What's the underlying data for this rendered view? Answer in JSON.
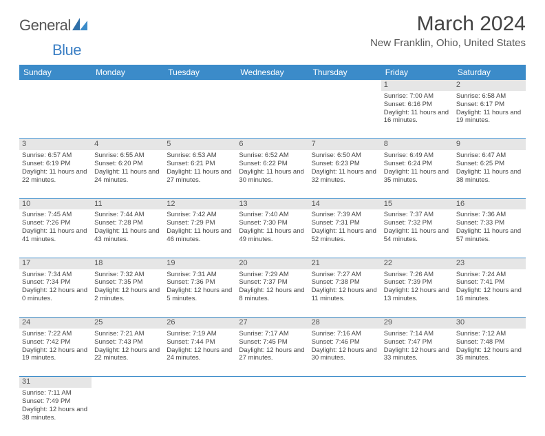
{
  "logo": {
    "part1": "General",
    "part2": "Blue"
  },
  "title": "March 2024",
  "location": "New Franklin, Ohio, United States",
  "colors": {
    "header_bg": "#3b8bc9",
    "header_text": "#ffffff",
    "daynum_bg": "#e6e6e6",
    "border": "#3b8bc9",
    "logo_blue": "#3b7fc4",
    "text": "#444444"
  },
  "weekdays": [
    "Sunday",
    "Monday",
    "Tuesday",
    "Wednesday",
    "Thursday",
    "Friday",
    "Saturday"
  ],
  "weeks": [
    [
      null,
      null,
      null,
      null,
      null,
      {
        "n": "1",
        "sr": "7:00 AM",
        "ss": "6:16 PM",
        "dl": "11 hours and 16 minutes."
      },
      {
        "n": "2",
        "sr": "6:58 AM",
        "ss": "6:17 PM",
        "dl": "11 hours and 19 minutes."
      }
    ],
    [
      {
        "n": "3",
        "sr": "6:57 AM",
        "ss": "6:19 PM",
        "dl": "11 hours and 22 minutes."
      },
      {
        "n": "4",
        "sr": "6:55 AM",
        "ss": "6:20 PM",
        "dl": "11 hours and 24 minutes."
      },
      {
        "n": "5",
        "sr": "6:53 AM",
        "ss": "6:21 PM",
        "dl": "11 hours and 27 minutes."
      },
      {
        "n": "6",
        "sr": "6:52 AM",
        "ss": "6:22 PM",
        "dl": "11 hours and 30 minutes."
      },
      {
        "n": "7",
        "sr": "6:50 AM",
        "ss": "6:23 PM",
        "dl": "11 hours and 32 minutes."
      },
      {
        "n": "8",
        "sr": "6:49 AM",
        "ss": "6:24 PM",
        "dl": "11 hours and 35 minutes."
      },
      {
        "n": "9",
        "sr": "6:47 AM",
        "ss": "6:25 PM",
        "dl": "11 hours and 38 minutes."
      }
    ],
    [
      {
        "n": "10",
        "sr": "7:45 AM",
        "ss": "7:26 PM",
        "dl": "11 hours and 41 minutes."
      },
      {
        "n": "11",
        "sr": "7:44 AM",
        "ss": "7:28 PM",
        "dl": "11 hours and 43 minutes."
      },
      {
        "n": "12",
        "sr": "7:42 AM",
        "ss": "7:29 PM",
        "dl": "11 hours and 46 minutes."
      },
      {
        "n": "13",
        "sr": "7:40 AM",
        "ss": "7:30 PM",
        "dl": "11 hours and 49 minutes."
      },
      {
        "n": "14",
        "sr": "7:39 AM",
        "ss": "7:31 PM",
        "dl": "11 hours and 52 minutes."
      },
      {
        "n": "15",
        "sr": "7:37 AM",
        "ss": "7:32 PM",
        "dl": "11 hours and 54 minutes."
      },
      {
        "n": "16",
        "sr": "7:36 AM",
        "ss": "7:33 PM",
        "dl": "11 hours and 57 minutes."
      }
    ],
    [
      {
        "n": "17",
        "sr": "7:34 AM",
        "ss": "7:34 PM",
        "dl": "12 hours and 0 minutes."
      },
      {
        "n": "18",
        "sr": "7:32 AM",
        "ss": "7:35 PM",
        "dl": "12 hours and 2 minutes."
      },
      {
        "n": "19",
        "sr": "7:31 AM",
        "ss": "7:36 PM",
        "dl": "12 hours and 5 minutes."
      },
      {
        "n": "20",
        "sr": "7:29 AM",
        "ss": "7:37 PM",
        "dl": "12 hours and 8 minutes."
      },
      {
        "n": "21",
        "sr": "7:27 AM",
        "ss": "7:38 PM",
        "dl": "12 hours and 11 minutes."
      },
      {
        "n": "22",
        "sr": "7:26 AM",
        "ss": "7:39 PM",
        "dl": "12 hours and 13 minutes."
      },
      {
        "n": "23",
        "sr": "7:24 AM",
        "ss": "7:41 PM",
        "dl": "12 hours and 16 minutes."
      }
    ],
    [
      {
        "n": "24",
        "sr": "7:22 AM",
        "ss": "7:42 PM",
        "dl": "12 hours and 19 minutes."
      },
      {
        "n": "25",
        "sr": "7:21 AM",
        "ss": "7:43 PM",
        "dl": "12 hours and 22 minutes."
      },
      {
        "n": "26",
        "sr": "7:19 AM",
        "ss": "7:44 PM",
        "dl": "12 hours and 24 minutes."
      },
      {
        "n": "27",
        "sr": "7:17 AM",
        "ss": "7:45 PM",
        "dl": "12 hours and 27 minutes."
      },
      {
        "n": "28",
        "sr": "7:16 AM",
        "ss": "7:46 PM",
        "dl": "12 hours and 30 minutes."
      },
      {
        "n": "29",
        "sr": "7:14 AM",
        "ss": "7:47 PM",
        "dl": "12 hours and 33 minutes."
      },
      {
        "n": "30",
        "sr": "7:12 AM",
        "ss": "7:48 PM",
        "dl": "12 hours and 35 minutes."
      }
    ],
    [
      {
        "n": "31",
        "sr": "7:11 AM",
        "ss": "7:49 PM",
        "dl": "12 hours and 38 minutes."
      },
      null,
      null,
      null,
      null,
      null,
      null
    ]
  ],
  "labels": {
    "sunrise": "Sunrise:",
    "sunset": "Sunset:",
    "daylight": "Daylight:"
  }
}
